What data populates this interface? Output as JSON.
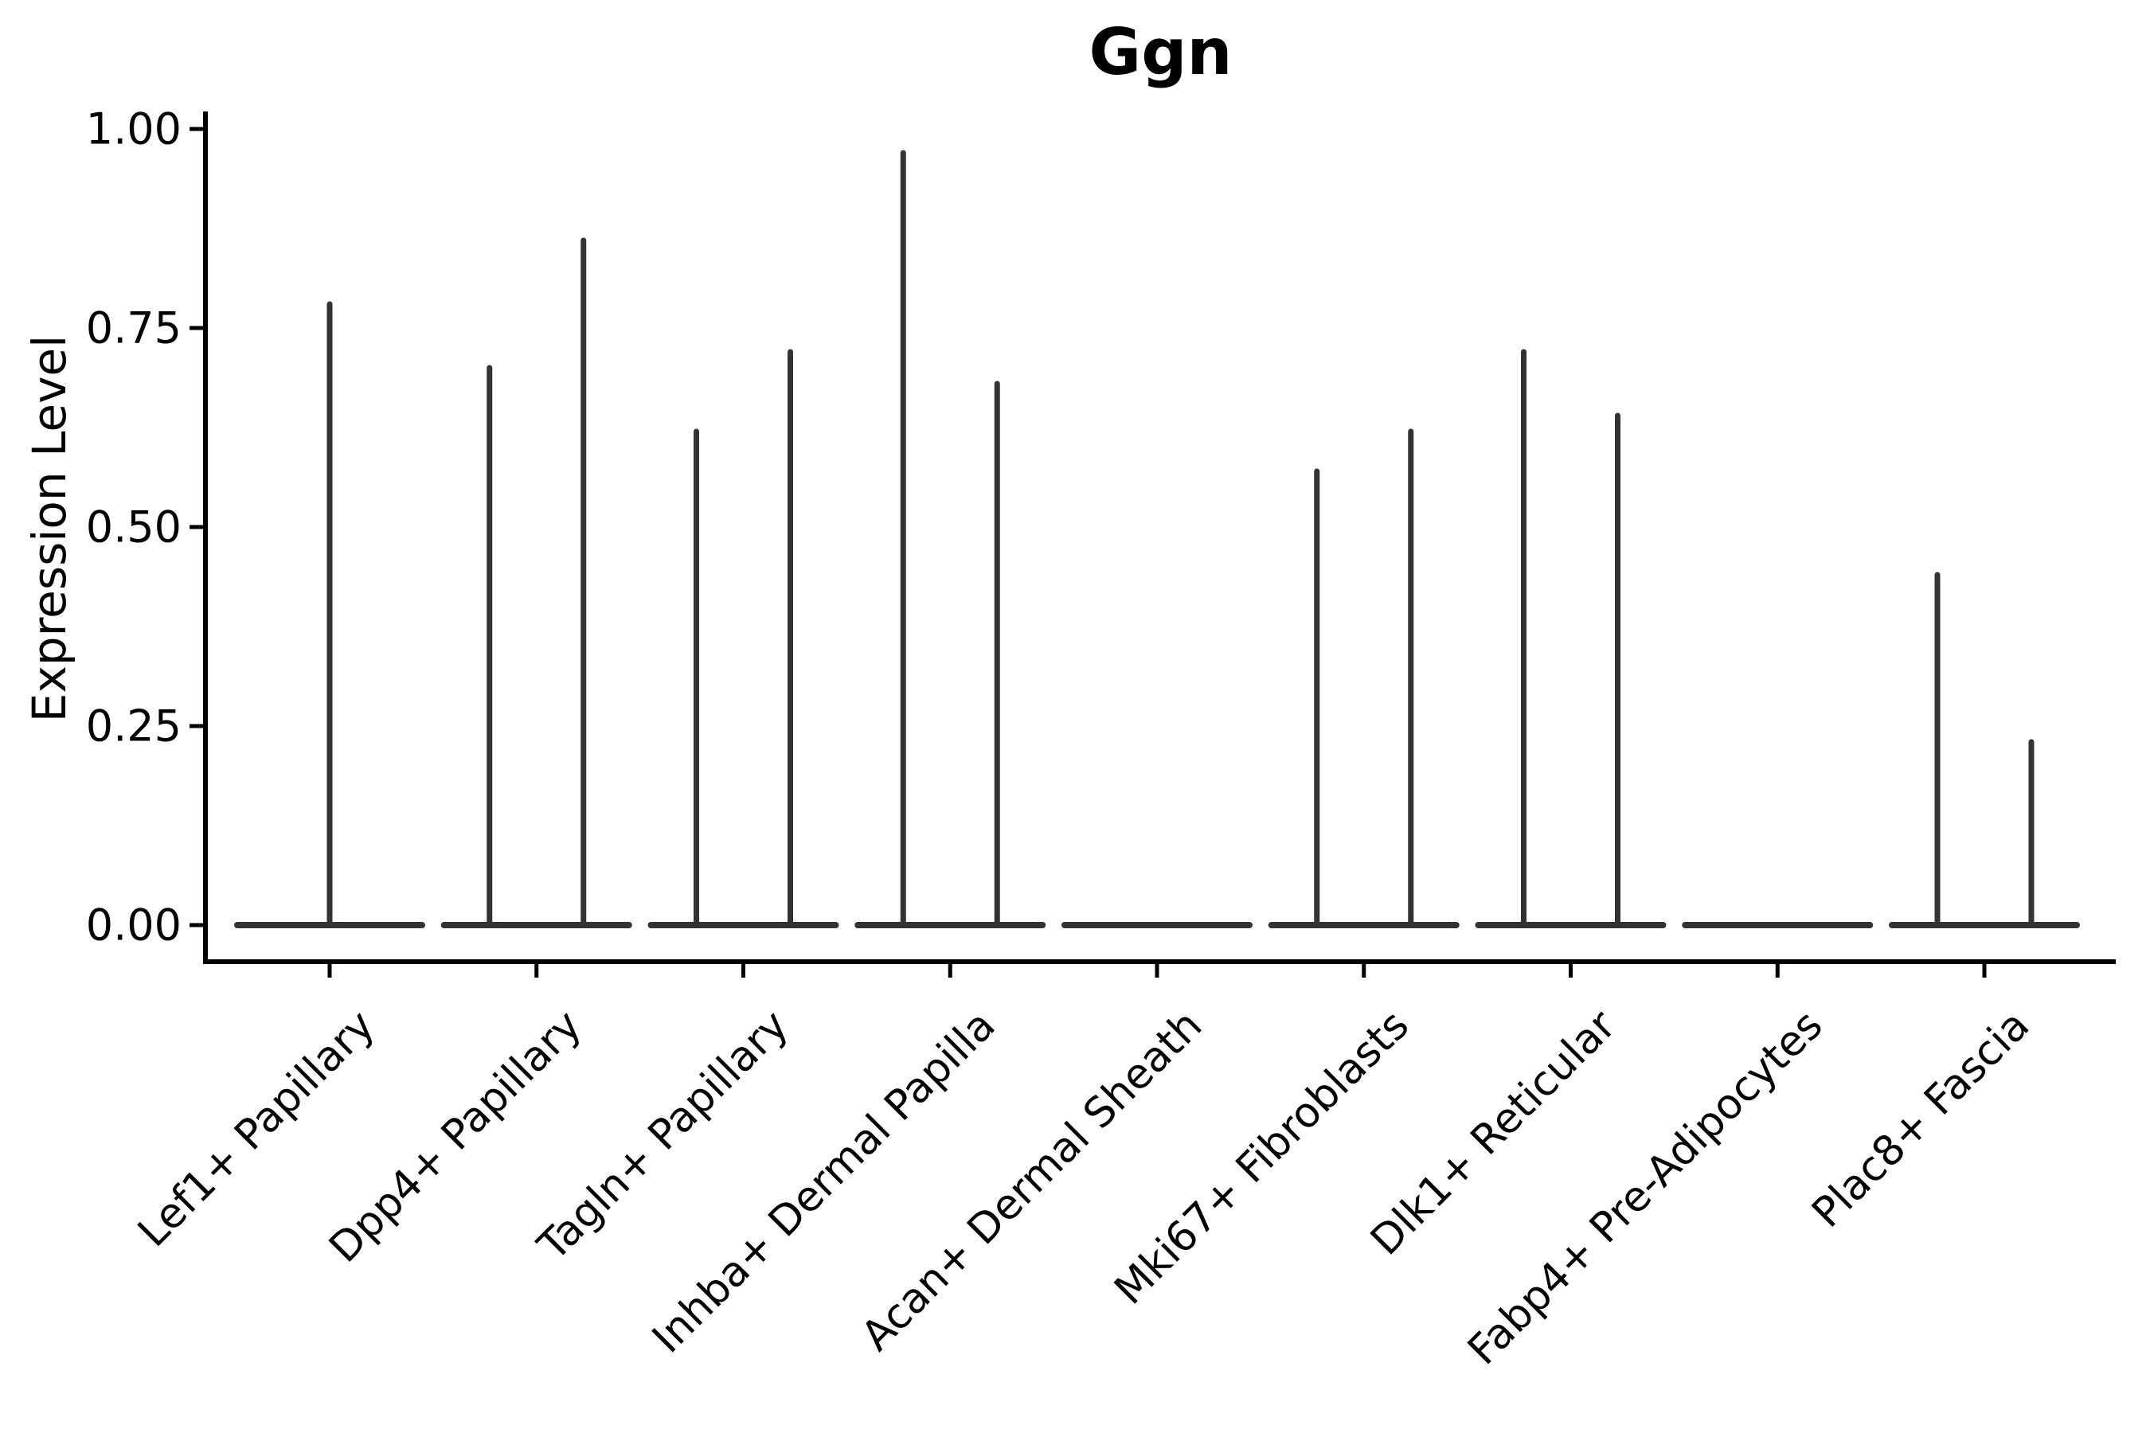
{
  "figure": {
    "title": "Ggn",
    "y_axis_title": "Expression Level"
  },
  "chart_data": {
    "type": "violin",
    "title": "Ggn",
    "xlabel": "",
    "ylabel": "Expression Level",
    "ylim": [
      0,
      1.02
    ],
    "ytick_labels": [
      "0.00",
      "0.25",
      "0.50",
      "0.75",
      "1.00"
    ],
    "ytick_values": [
      0,
      0.25,
      0.5,
      0.75,
      1.0
    ],
    "grid": false,
    "legend": null,
    "categories": [
      "Lef1+ Papillary",
      "Dpp4+ Papillary",
      "Tagln+ Papillary",
      "Inhba+ Dermal Papilla",
      "Acan+ Dermal Sheath",
      "Mki67+ Fibroblasts",
      "Dlk1+ Reticular",
      "Fabp4+ Pre-Adipocytes",
      "Plac8+ Fascia"
    ],
    "violins": [
      {
        "category": "Lef1+ Papillary",
        "baseline": 0,
        "spikes": [
          {
            "position": "center",
            "max": 0.78
          }
        ]
      },
      {
        "category": "Dpp4+ Papillary",
        "baseline": 0,
        "spikes": [
          {
            "position": "left",
            "max": 0.7
          },
          {
            "position": "right",
            "max": 0.86
          }
        ]
      },
      {
        "category": "Tagln+ Papillary",
        "baseline": 0,
        "spikes": [
          {
            "position": "left",
            "max": 0.62
          },
          {
            "position": "right",
            "max": 0.72
          }
        ]
      },
      {
        "category": "Inhba+ Dermal Papilla",
        "baseline": 0,
        "spikes": [
          {
            "position": "left",
            "max": 0.97
          },
          {
            "position": "right",
            "max": 0.68
          }
        ]
      },
      {
        "category": "Acan+ Dermal Sheath",
        "baseline": 0,
        "spikes": []
      },
      {
        "category": "Mki67+ Fibroblasts",
        "baseline": 0,
        "spikes": [
          {
            "position": "left",
            "max": 0.57
          },
          {
            "position": "right",
            "max": 0.62
          }
        ]
      },
      {
        "category": "Dlk1+ Reticular",
        "baseline": 0,
        "spikes": [
          {
            "position": "left",
            "max": 0.72
          },
          {
            "position": "right",
            "max": 0.64
          }
        ]
      },
      {
        "category": "Fabp4+ Pre-Adipocytes",
        "baseline": 0,
        "spikes": []
      },
      {
        "category": "Plac8+ Fascia",
        "baseline": 0,
        "spikes": [
          {
            "position": "left",
            "max": 0.44
          },
          {
            "position": "right",
            "max": 0.23
          }
        ]
      }
    ],
    "colors": {
      "violin": "#333333",
      "axis": "#000000",
      "text": "#000000",
      "background": "#ffffff"
    }
  }
}
